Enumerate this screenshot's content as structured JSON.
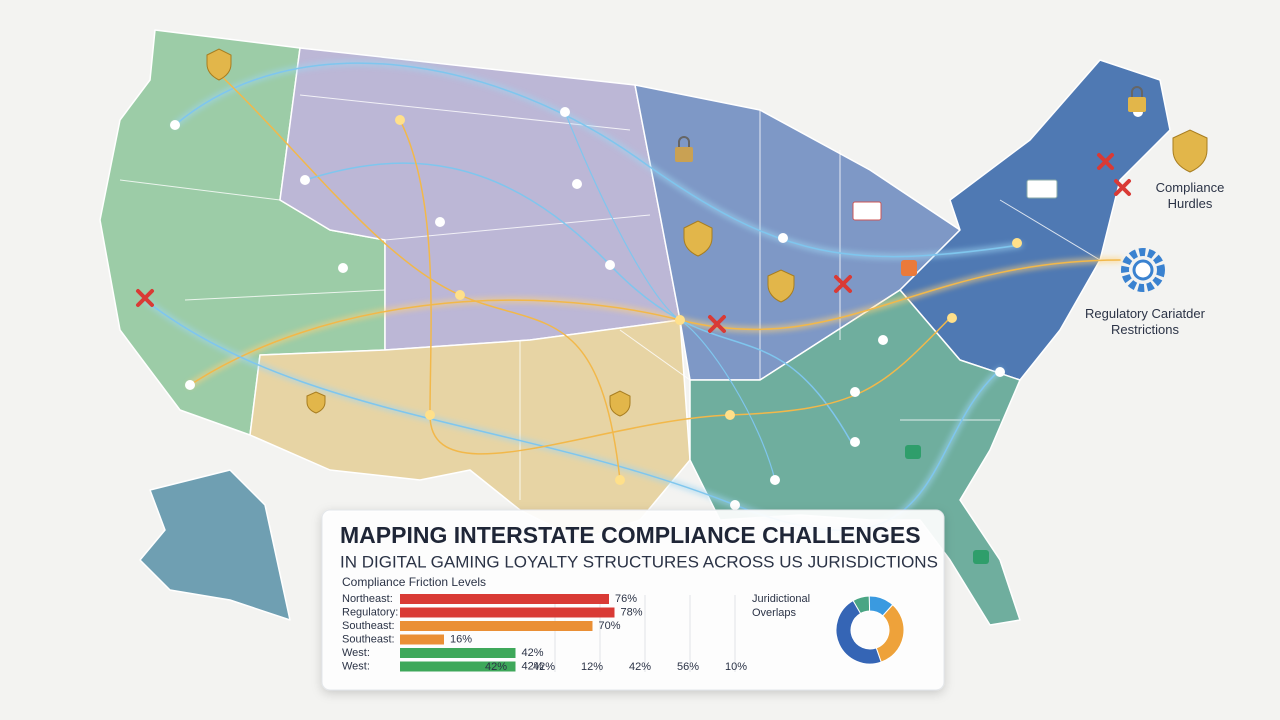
{
  "callouts": {
    "compliance_hurdles": "Compliance Hurdles",
    "regulatory": "Regulatory Cariatder Restrictions"
  },
  "panel": {
    "title": "MAPPING INTERSTATE COMPLIANCE CHALLENGES",
    "subtitle": "IN DIGITAL GAMING LOYALTY STRUCTURES ACROSS US JURISDICTIONS"
  },
  "chart_data": [
    {
      "type": "bar",
      "title": "Compliance Friction Levels",
      "categories": [
        "Northeast:",
        "Regulatory:",
        "Southeast:",
        "Southeast:",
        "West:",
        "West:"
      ],
      "values": [
        76,
        78,
        70,
        16,
        42,
        42
      ],
      "value_labels": [
        "76%",
        "78%",
        "70%",
        "16%",
        "42%",
        "42%"
      ],
      "colors": [
        "#d93a35",
        "#d93a35",
        "#ea8f35",
        "#ea8f35",
        "#3ea85a",
        "#3ea85a"
      ],
      "xlim": [
        0,
        100
      ],
      "axis_labels": [
        "42%",
        "42%",
        "12%",
        "42%",
        "56%",
        "10%"
      ]
    },
    {
      "type": "donut",
      "title": "Juridictional Overlaps",
      "values": [
        8,
        12,
        33,
        47
      ],
      "colors": [
        "#4aa584",
        "#3a9ae0",
        "#eea23a",
        "#3565b5"
      ]
    }
  ]
}
